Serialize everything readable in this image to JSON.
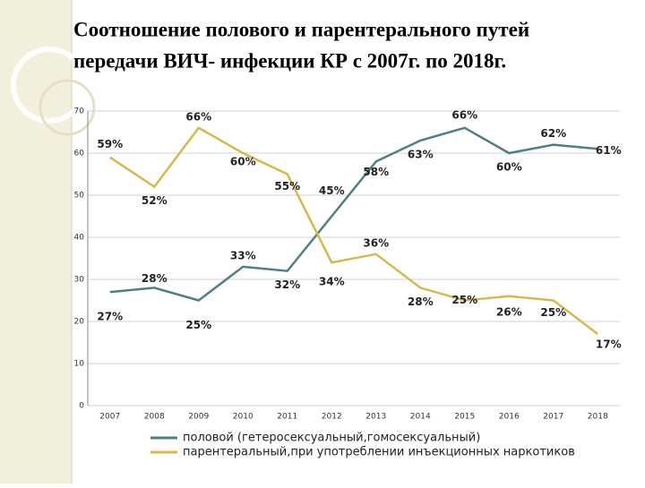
{
  "chart_data": {
    "type": "line",
    "title": [
      "Соотношение полового и парентерального путей",
      "передачи ВИЧ- инфекции КР с 2007г.  по 2018г."
    ],
    "categories": [
      "2007",
      "2008",
      "2009",
      "2010",
      "2011",
      "2012",
      "2013",
      "2014",
      "2015",
      "2016",
      "2017",
      "2018"
    ],
    "series": [
      {
        "name": "половой (гетеросексуальный,гомосексуальный)",
        "color": "#4f8080",
        "values": [
          27,
          28,
          25,
          33,
          32,
          45,
          58,
          63,
          66,
          60,
          62,
          61
        ],
        "value_labels": [
          "27%",
          "28%",
          "25%",
          "33%",
          "32%",
          "45%",
          "58%",
          "63%",
          "66%",
          "60%",
          "62%",
          "61%"
        ]
      },
      {
        "name": "парентеральный,при употреблении инъекционных наркотиков",
        "color": "#d6b94c",
        "values": [
          59,
          52,
          66,
          60,
          55,
          34,
          36,
          28,
          25,
          26,
          25,
          17
        ],
        "value_labels": [
          "59%",
          "52%",
          "66%",
          "60%",
          "55%",
          "34%",
          "36%",
          "28%",
          "25%",
          "26%",
          "25%",
          "17%"
        ]
      }
    ],
    "ylim": [
      0,
      70
    ],
    "yticks": [
      0,
      10,
      20,
      30,
      40,
      50,
      60,
      70
    ],
    "grid": true,
    "legend": "bottom"
  }
}
